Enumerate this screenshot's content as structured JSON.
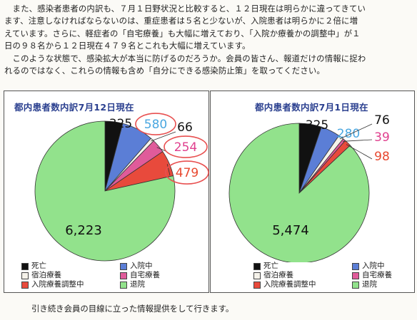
{
  "paragraph": {
    "line1": "　また、感染者患者の内訳も、７月１日野状況と比較すると、１２日現在は明らかに違ってきてい",
    "line2": "ます、注意しなければならないのは、重症患者は５名と少ないが、入院患者は明らかに２倍に増",
    "line3": "えています。さらに、軽症者の「自宅療養」も大幅に増えており、「入院か療養かの調整中」が１",
    "line4": "日の９８名から１２日現在４７９名とこれも大幅に増えています。",
    "line5": "　このような状態で、感染拡大が本当に防げるのだろうか。会員の皆さん、報道だけの情報に捉わ",
    "line6": "れるのではなく、これらの情報も含め「自分にできる感染防止策」を取ってください。"
  },
  "footer": "引き続き会員の目線に立った情報提供をして行きます。",
  "colors": {
    "death": "#111111",
    "hospital": "#5b7ed6",
    "hotel": "#f5f2ea",
    "home": "#e05b9a",
    "adjusting": "#e84a3c",
    "recovered": "#92e28c",
    "highlight_ring": "#e85050",
    "label_hospital": "#4aa7e0",
    "label_home": "#e0408e",
    "label_adjusting": "#e8482f"
  },
  "chart_data": [
    {
      "type": "pie",
      "title": "都内患者数内訳7月12日現在",
      "categories": [
        "死亡",
        "入院中",
        "宿泊療養",
        "自宅療養",
        "入院療養調整中",
        "退院"
      ],
      "values": [
        325,
        580,
        66,
        254,
        479,
        6223
      ],
      "value_labels": [
        "325",
        "580",
        "66",
        "254",
        "479",
        "6,223"
      ],
      "highlighted": [
        "入院中",
        "自宅療養",
        "入院療養調整中"
      ],
      "legend_position": "bottom"
    },
    {
      "type": "pie",
      "title": "都内患者数内訳7月1日現在",
      "categories": [
        "死亡",
        "入院中",
        "宿泊療養",
        "自宅療養",
        "入院療養調整中",
        "退院"
      ],
      "values": [
        325,
        280,
        76,
        39,
        98,
        5474
      ],
      "value_labels": [
        "325",
        "280",
        "76",
        "39",
        "98",
        "5,474"
      ],
      "legend_position": "bottom"
    }
  ]
}
